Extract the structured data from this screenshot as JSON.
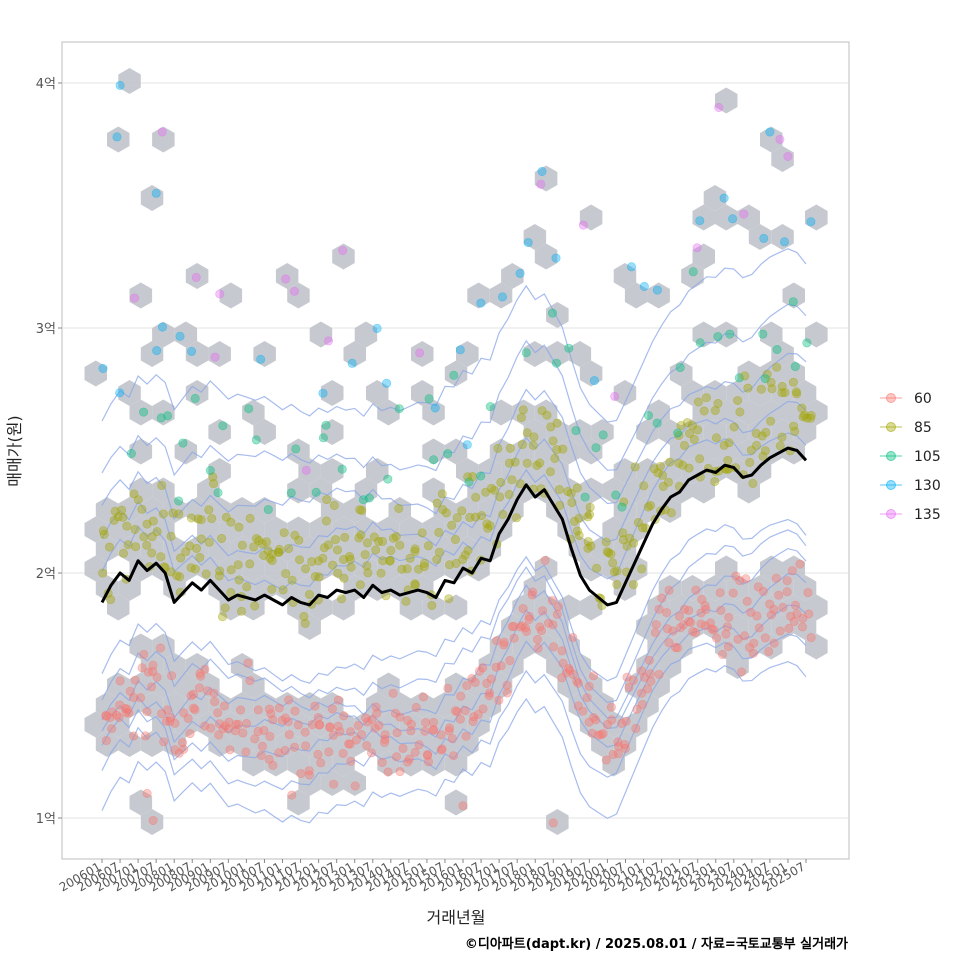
{
  "chart_data": {
    "type": "scatter",
    "title": "",
    "xlabel": "거래년월",
    "ylabel": "매매가(원)",
    "caption": "©디아파트(dapt.kr) / 2025.08.01 / 자료=국토교통부 실거래가",
    "ylim": [
      0.85,
      4.18
    ],
    "x_range": [
      "2006-01",
      "2025-07"
    ],
    "x_ticks": [
      "200601",
      "200607",
      "200701",
      "200707",
      "200801",
      "200807",
      "200901",
      "200907",
      "201001",
      "201007",
      "201101",
      "201107",
      "201201",
      "201207",
      "201301",
      "201307",
      "201401",
      "201407",
      "201501",
      "201507",
      "201601",
      "201607",
      "201701",
      "201707",
      "201801",
      "201807",
      "201901",
      "201907",
      "202001",
      "202007",
      "202101",
      "202107",
      "202201",
      "202207",
      "202301",
      "202307",
      "202401",
      "202407",
      "202501",
      "202507"
    ],
    "y_ticks": [
      {
        "value": 1,
        "label": "1억"
      },
      {
        "value": 2,
        "label": "2억"
      },
      {
        "value": 3,
        "label": "3억"
      },
      {
        "value": 4,
        "label": "4억"
      }
    ],
    "legend_position": "right",
    "series": [
      {
        "name": "60",
        "color": "#F8766D"
      },
      {
        "name": "85",
        "color": "#A3A500"
      },
      {
        "name": "105",
        "color": "#00BF7D"
      },
      {
        "name": "130",
        "color": "#00B0F6"
      },
      {
        "name": "135",
        "color": "#E76BF3"
      }
    ],
    "trend_line": {
      "name": "moving average",
      "color": "#000000",
      "points": [
        [
          "2006-01",
          1.88
        ],
        [
          "2006-04",
          1.95
        ],
        [
          "2006-07",
          2.0
        ],
        [
          "2006-10",
          1.97
        ],
        [
          "2007-01",
          2.05
        ],
        [
          "2007-04",
          2.01
        ],
        [
          "2007-07",
          2.04
        ],
        [
          "2007-10",
          2.0
        ],
        [
          "2008-01",
          1.88
        ],
        [
          "2008-04",
          1.92
        ],
        [
          "2008-07",
          1.96
        ],
        [
          "2008-10",
          1.93
        ],
        [
          "2009-01",
          1.97
        ],
        [
          "2009-04",
          1.93
        ],
        [
          "2009-07",
          1.89
        ],
        [
          "2009-10",
          1.91
        ],
        [
          "2010-01",
          1.9
        ],
        [
          "2010-04",
          1.89
        ],
        [
          "2010-07",
          1.91
        ],
        [
          "2010-10",
          1.89
        ],
        [
          "2011-01",
          1.87
        ],
        [
          "2011-04",
          1.9
        ],
        [
          "2011-07",
          1.88
        ],
        [
          "2011-10",
          1.87
        ],
        [
          "2012-01",
          1.91
        ],
        [
          "2012-04",
          1.9
        ],
        [
          "2012-07",
          1.93
        ],
        [
          "2012-10",
          1.92
        ],
        [
          "2013-01",
          1.93
        ],
        [
          "2013-04",
          1.9
        ],
        [
          "2013-07",
          1.95
        ],
        [
          "2013-10",
          1.92
        ],
        [
          "2014-01",
          1.93
        ],
        [
          "2014-04",
          1.91
        ],
        [
          "2014-07",
          1.92
        ],
        [
          "2014-10",
          1.93
        ],
        [
          "2015-01",
          1.92
        ],
        [
          "2015-04",
          1.9
        ],
        [
          "2015-07",
          1.97
        ],
        [
          "2015-10",
          1.96
        ],
        [
          "2016-01",
          2.02
        ],
        [
          "2016-04",
          2.0
        ],
        [
          "2016-07",
          2.06
        ],
        [
          "2016-10",
          2.05
        ],
        [
          "2017-01",
          2.16
        ],
        [
          "2017-04",
          2.22
        ],
        [
          "2017-07",
          2.3
        ],
        [
          "2017-10",
          2.36
        ],
        [
          "2018-01",
          2.31
        ],
        [
          "2018-04",
          2.34
        ],
        [
          "2018-07",
          2.28
        ],
        [
          "2018-10",
          2.22
        ],
        [
          "2019-01",
          2.1
        ],
        [
          "2019-04",
          1.99
        ],
        [
          "2019-07",
          1.93
        ],
        [
          "2019-10",
          1.9
        ],
        [
          "2020-01",
          1.87
        ],
        [
          "2020-04",
          1.88
        ],
        [
          "2020-07",
          1.96
        ],
        [
          "2020-10",
          2.04
        ],
        [
          "2021-01",
          2.12
        ],
        [
          "2021-04",
          2.2
        ],
        [
          "2021-07",
          2.26
        ],
        [
          "2021-10",
          2.31
        ],
        [
          "2022-01",
          2.33
        ],
        [
          "2022-04",
          2.38
        ],
        [
          "2022-07",
          2.4
        ],
        [
          "2022-10",
          2.42
        ],
        [
          "2023-01",
          2.41
        ],
        [
          "2023-04",
          2.44
        ],
        [
          "2023-07",
          2.43
        ],
        [
          "2023-10",
          2.39
        ],
        [
          "2024-01",
          2.4
        ],
        [
          "2024-04",
          2.44
        ],
        [
          "2024-07",
          2.47
        ],
        [
          "2024-10",
          2.49
        ],
        [
          "2025-01",
          2.51
        ],
        [
          "2025-04",
          2.5
        ],
        [
          "2025-07",
          2.46
        ]
      ]
    },
    "layers": [
      "hexbin density",
      "2d density contours",
      "scatter points by size group",
      "moving-average line"
    ]
  }
}
